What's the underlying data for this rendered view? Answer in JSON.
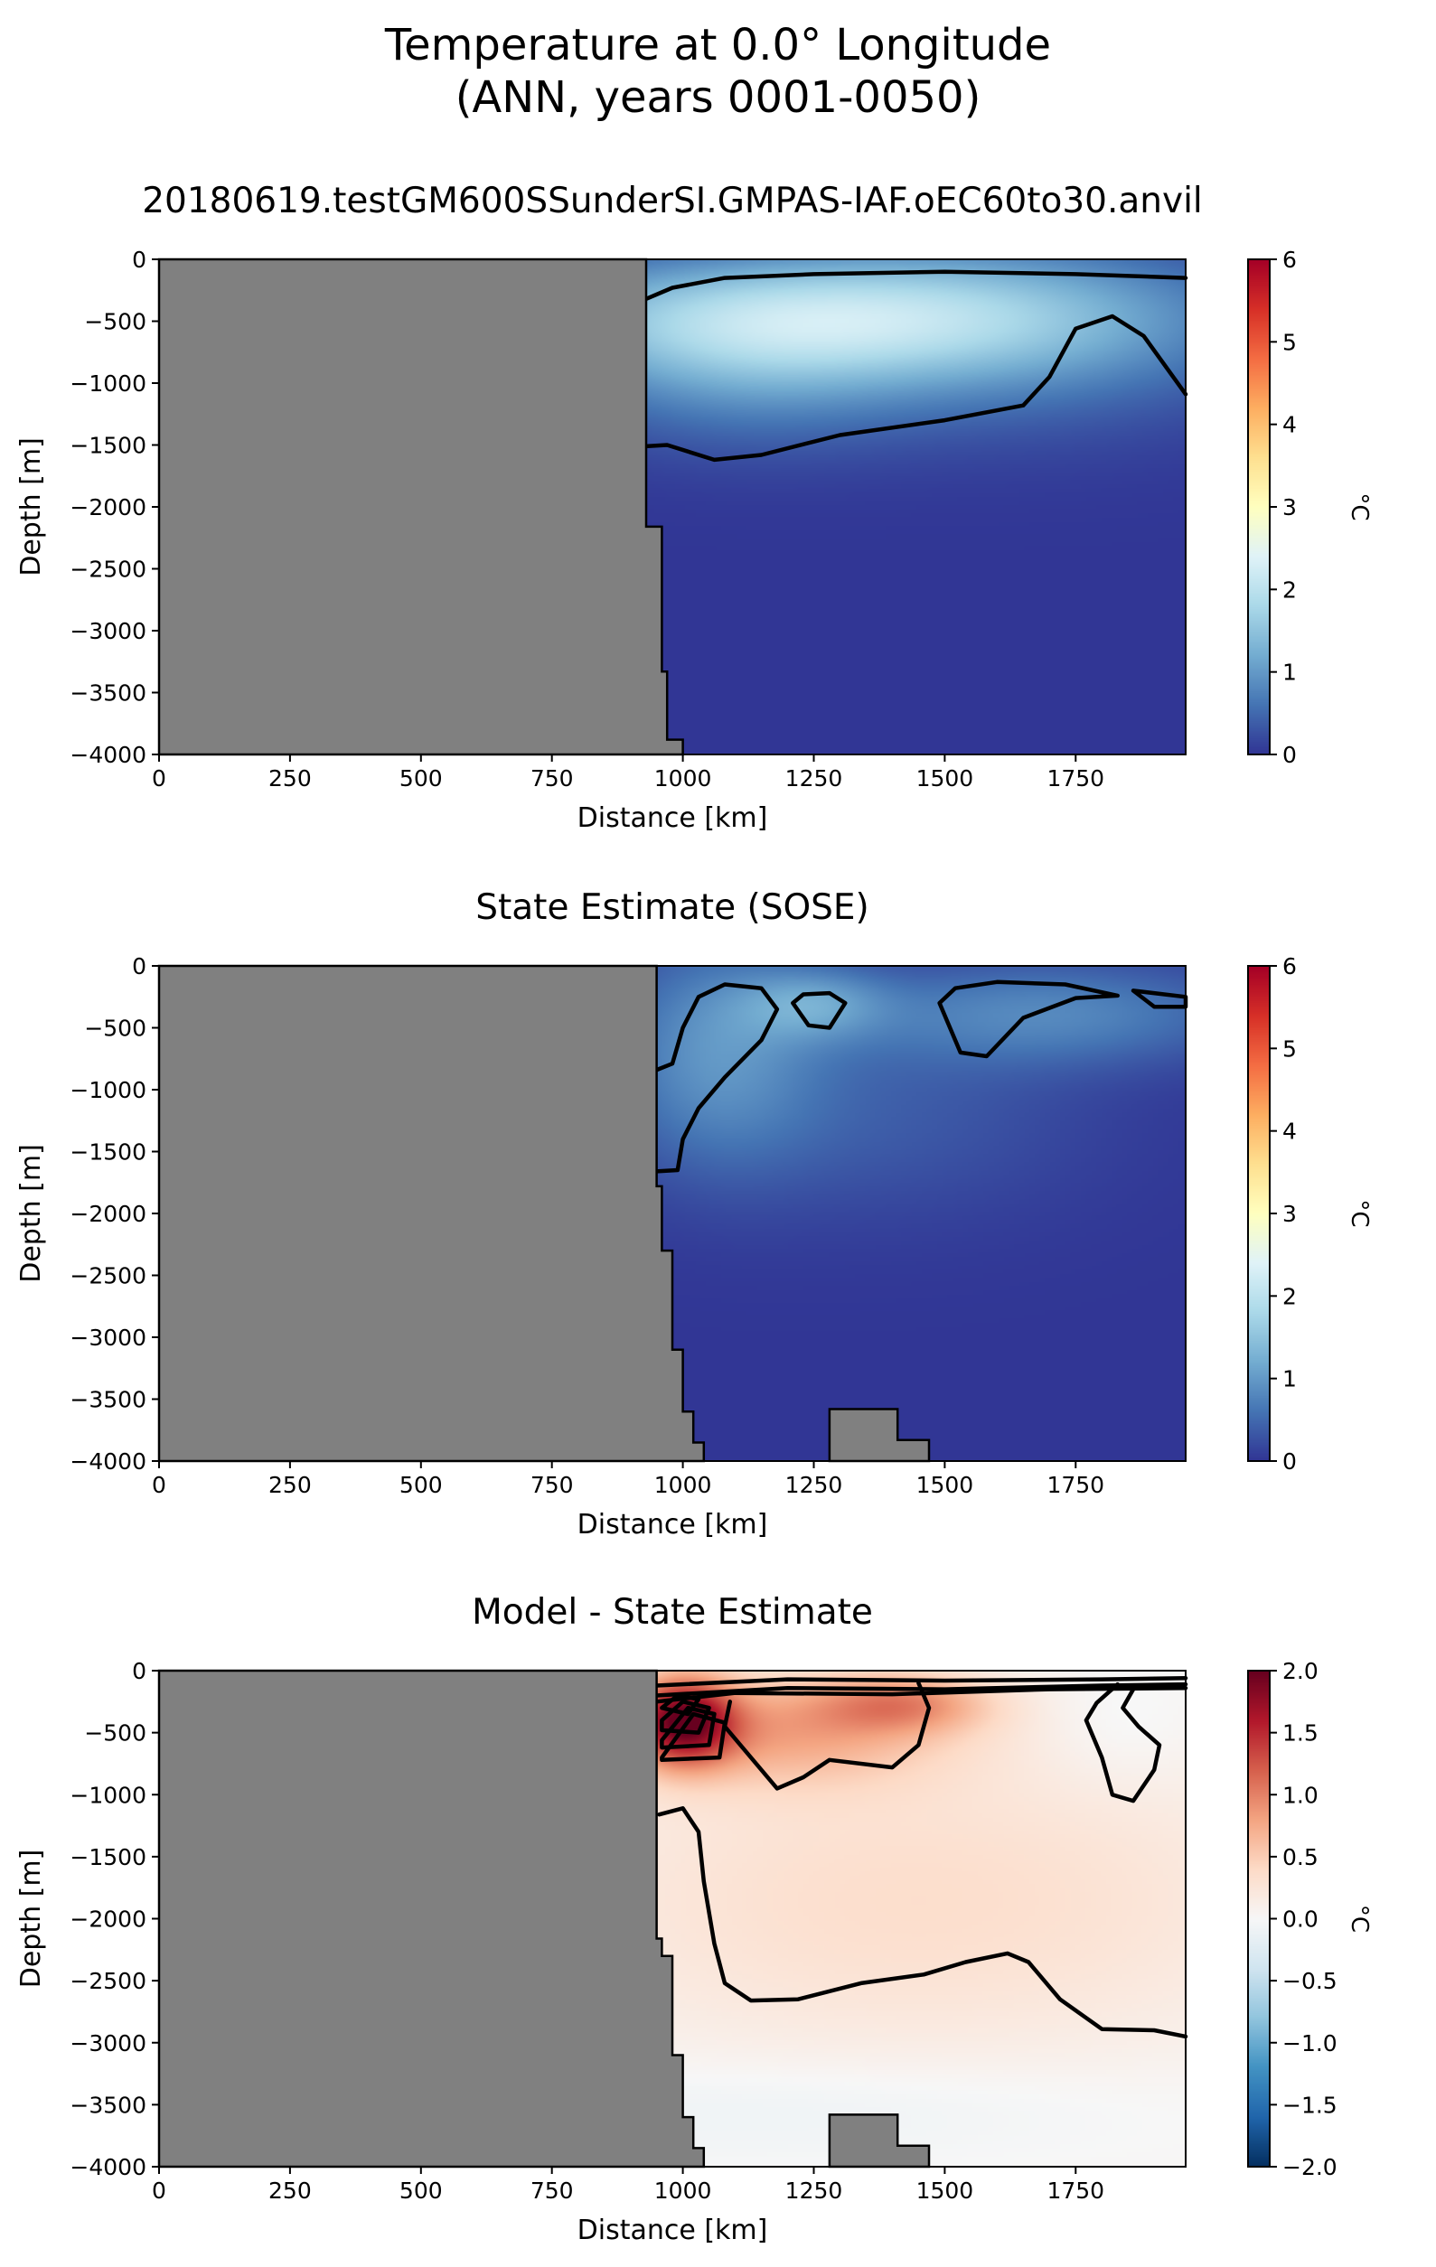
{
  "figure": {
    "title_line1": "Temperature at 0.0° Longitude",
    "title_line2": "(ANN, years 0001-0050)"
  },
  "colors": {
    "land": "#808080",
    "contour": "#000000",
    "rdylbu_r": [
      "#313695",
      "#4575b4",
      "#74add1",
      "#abd9e9",
      "#e0f3f8",
      "#ffffbf",
      "#fee090",
      "#fdae61",
      "#f46d43",
      "#d73027",
      "#a50026"
    ],
    "rdbu_r": [
      "#053061",
      "#2166ac",
      "#4393c3",
      "#92c5de",
      "#d1e5f0",
      "#f7f7f7",
      "#fddbc7",
      "#f4a582",
      "#d6604d",
      "#b2182b",
      "#67001f"
    ]
  },
  "chart_data": [
    {
      "type": "heatmap",
      "title": "20180619.testGM600SSunderSI.GMPAS-IAF.oEC60to30.anvil",
      "xlabel": "Distance [km]",
      "ylabel": "Depth [m]",
      "xlim": [
        0,
        1960
      ],
      "ylim": [
        -4000,
        0
      ],
      "xticks": [
        0,
        250,
        500,
        750,
        1000,
        1250,
        1500,
        1750
      ],
      "yticks": [
        0,
        -500,
        -1000,
        -1500,
        -2000,
        -2500,
        -3000,
        -3500,
        -4000
      ],
      "colorbar": {
        "label": "°C",
        "ticks": [
          0,
          1,
          2,
          3,
          4,
          5,
          6
        ],
        "range": [
          0,
          6
        ],
        "colormap": "RdYlBu_r"
      },
      "land_boundary": [
        [
          930,
          0
        ],
        [
          930,
          -2160
        ],
        [
          960,
          -2160
        ],
        [
          960,
          -3330
        ],
        [
          970,
          -3330
        ],
        [
          970,
          -3880
        ],
        [
          1000,
          -3880
        ],
        [
          1000,
          -4000
        ]
      ],
      "field_features": [
        {
          "x": 1250,
          "y": -450,
          "sx": 420,
          "sy": 350,
          "value": 1.6
        },
        {
          "x": 1650,
          "y": -600,
          "sx": 330,
          "sy": 550,
          "value": 0.7
        },
        {
          "x": 1100,
          "y": -900,
          "sx": 250,
          "sy": 450,
          "value": 0.7
        }
      ],
      "contours": [
        [
          [
            930,
            -320
          ],
          [
            980,
            -230
          ],
          [
            1080,
            -150
          ],
          [
            1250,
            -120
          ],
          [
            1500,
            -100
          ],
          [
            1750,
            -120
          ],
          [
            1960,
            -150
          ]
        ],
        [
          [
            930,
            -1510
          ],
          [
            970,
            -1500
          ],
          [
            1060,
            -1620
          ],
          [
            1150,
            -1580
          ],
          [
            1300,
            -1420
          ],
          [
            1500,
            -1300
          ],
          [
            1650,
            -1180
          ],
          [
            1700,
            -950
          ],
          [
            1750,
            -560
          ],
          [
            1820,
            -460
          ],
          [
            1880,
            -620
          ],
          [
            1960,
            -1090
          ]
        ]
      ]
    },
    {
      "type": "heatmap",
      "title": "State Estimate (SOSE)",
      "xlabel": "Distance [km]",
      "ylabel": "Depth [m]",
      "xlim": [
        0,
        1960
      ],
      "ylim": [
        -4000,
        0
      ],
      "xticks": [
        0,
        250,
        500,
        750,
        1000,
        1250,
        1500,
        1750
      ],
      "yticks": [
        0,
        -500,
        -1000,
        -1500,
        -2000,
        -2500,
        -3000,
        -3500,
        -4000
      ],
      "colorbar": {
        "label": "°C",
        "ticks": [
          0,
          1,
          2,
          3,
          4,
          5,
          6
        ],
        "range": [
          0,
          6
        ],
        "colormap": "RdYlBu_r"
      },
      "land_boundary": [
        [
          950,
          0
        ],
        [
          950,
          -1780
        ],
        [
          960,
          -1780
        ],
        [
          960,
          -2300
        ],
        [
          980,
          -2300
        ],
        [
          980,
          -3100
        ],
        [
          1000,
          -3100
        ],
        [
          1000,
          -3600
        ],
        [
          1020,
          -3600
        ],
        [
          1020,
          -3850
        ],
        [
          1040,
          -3850
        ],
        [
          1040,
          -4000
        ]
      ],
      "seamount": [
        [
          1280,
          -4000
        ],
        [
          1280,
          -3580
        ],
        [
          1410,
          -3580
        ],
        [
          1410,
          -3830
        ],
        [
          1470,
          -3830
        ],
        [
          1470,
          -4000
        ]
      ],
      "field_features": [
        {
          "x": 1060,
          "y": -650,
          "sx": 140,
          "sy": 650,
          "value": 0.8
        },
        {
          "x": 1250,
          "y": -300,
          "sx": 100,
          "sy": 200,
          "value": 0.7
        },
        {
          "x": 1700,
          "y": -380,
          "sx": 280,
          "sy": 300,
          "value": 0.75
        },
        {
          "x": 1350,
          "y": -1200,
          "sx": 300,
          "sy": 600,
          "value": 0.35
        }
      ],
      "contours": [
        [
          [
            950,
            -840
          ],
          [
            980,
            -790
          ],
          [
            1000,
            -500
          ],
          [
            1030,
            -250
          ],
          [
            1080,
            -150
          ],
          [
            1150,
            -180
          ],
          [
            1180,
            -350
          ],
          [
            1150,
            -600
          ],
          [
            1080,
            -900
          ],
          [
            1030,
            -1150
          ],
          [
            1000,
            -1400
          ],
          [
            990,
            -1650
          ],
          [
            950,
            -1660
          ]
        ],
        [
          [
            1210,
            -300
          ],
          [
            1230,
            -230
          ],
          [
            1280,
            -220
          ],
          [
            1310,
            -300
          ],
          [
            1280,
            -500
          ],
          [
            1240,
            -480
          ],
          [
            1210,
            -300
          ]
        ],
        [
          [
            1490,
            -300
          ],
          [
            1520,
            -180
          ],
          [
            1600,
            -130
          ],
          [
            1730,
            -150
          ],
          [
            1830,
            -240
          ],
          [
            1750,
            -260
          ],
          [
            1650,
            -420
          ],
          [
            1580,
            -730
          ],
          [
            1530,
            -700
          ],
          [
            1490,
            -300
          ]
        ],
        [
          [
            1860,
            -200
          ],
          [
            1960,
            -250
          ],
          [
            1960,
            -330
          ],
          [
            1900,
            -330
          ],
          [
            1860,
            -200
          ]
        ]
      ]
    },
    {
      "type": "heatmap",
      "title": "Model - State Estimate",
      "xlabel": "Distance [km]",
      "ylabel": "Depth [m]",
      "xlim": [
        0,
        1960
      ],
      "ylim": [
        -4000,
        0
      ],
      "xticks": [
        0,
        250,
        500,
        750,
        1000,
        1250,
        1500,
        1750
      ],
      "yticks": [
        0,
        -500,
        -1000,
        -1500,
        -2000,
        -2500,
        -3000,
        -3500,
        -4000
      ],
      "colorbar": {
        "label": "°C",
        "ticks": [
          2.0,
          1.5,
          1.0,
          0.5,
          0.0,
          -0.5,
          -1.0,
          -1.5,
          -2.0
        ],
        "range": [
          -2.0,
          2.0
        ],
        "colormap": "RdBu_r"
      },
      "land_boundary": [
        [
          950,
          0
        ],
        [
          950,
          -2160
        ],
        [
          960,
          -2160
        ],
        [
          960,
          -2300
        ],
        [
          980,
          -2300
        ],
        [
          980,
          -3100
        ],
        [
          1000,
          -3100
        ],
        [
          1000,
          -3600
        ],
        [
          1020,
          -3600
        ],
        [
          1020,
          -3850
        ],
        [
          1040,
          -3850
        ],
        [
          1040,
          -4000
        ]
      ],
      "seamount": [
        [
          1280,
          -4000
        ],
        [
          1280,
          -3580
        ],
        [
          1410,
          -3580
        ],
        [
          1410,
          -3830
        ],
        [
          1470,
          -3830
        ],
        [
          1470,
          -4000
        ]
      ],
      "field_features": [
        {
          "x": 1000,
          "y": -400,
          "sx": 70,
          "sy": 250,
          "value": 1.6
        },
        {
          "x": 1190,
          "y": -480,
          "sx": 230,
          "sy": 320,
          "value": 0.7
        },
        {
          "x": 1420,
          "y": -260,
          "sx": 120,
          "sy": 170,
          "value": 0.7
        },
        {
          "x": 1450,
          "y": -1850,
          "sx": 520,
          "sy": 900,
          "value": 0.35
        },
        {
          "x": 1830,
          "y": -450,
          "sx": 110,
          "sy": 350,
          "value": -0.08
        },
        {
          "x": 1200,
          "y": -3550,
          "sx": 520,
          "sy": 300,
          "value": -0.12
        }
      ],
      "contours": [
        [
          [
            950,
            -120
          ],
          [
            1200,
            -70
          ],
          [
            1500,
            -80
          ],
          [
            1800,
            -70
          ],
          [
            1960,
            -60
          ]
        ],
        [
          [
            950,
            -200
          ],
          [
            1200,
            -140
          ],
          [
            1500,
            -150
          ],
          [
            1800,
            -120
          ],
          [
            1960,
            -110
          ]
        ],
        [
          [
            950,
            -250
          ],
          [
            1100,
            -180
          ],
          [
            1400,
            -190
          ],
          [
            1700,
            -150
          ],
          [
            1960,
            -140
          ]
        ],
        [
          [
            960,
            -300
          ],
          [
            990,
            -200
          ],
          [
            1030,
            -230
          ],
          [
            1010,
            -350
          ],
          [
            960,
            -300
          ]
        ],
        [
          [
            960,
            -400
          ],
          [
            1000,
            -250
          ],
          [
            1050,
            -300
          ],
          [
            1030,
            -500
          ],
          [
            960,
            -480
          ],
          [
            960,
            -400
          ]
        ],
        [
          [
            960,
            -560
          ],
          [
            1010,
            -300
          ],
          [
            1060,
            -350
          ],
          [
            1050,
            -600
          ],
          [
            960,
            -620
          ],
          [
            960,
            -560
          ]
        ],
        [
          [
            960,
            -700
          ],
          [
            1020,
            -350
          ],
          [
            1080,
            -420
          ],
          [
            1070,
            -700
          ],
          [
            960,
            -720
          ],
          [
            960,
            -700
          ]
        ],
        [
          [
            1090,
            -250
          ],
          [
            1080,
            -450
          ],
          [
            1130,
            -700
          ],
          [
            1180,
            -950
          ],
          [
            1230,
            -860
          ],
          [
            1280,
            -720
          ],
          [
            1400,
            -780
          ],
          [
            1450,
            -600
          ],
          [
            1470,
            -300
          ],
          [
            1450,
            -100
          ]
        ],
        [
          [
            1830,
            -110
          ],
          [
            1790,
            -260
          ],
          [
            1770,
            -400
          ],
          [
            1800,
            -700
          ],
          [
            1820,
            -1000
          ],
          [
            1860,
            -1050
          ],
          [
            1900,
            -800
          ],
          [
            1910,
            -600
          ],
          [
            1870,
            -450
          ],
          [
            1840,
            -300
          ],
          [
            1860,
            -150
          ]
        ],
        [
          [
            955,
            -1160
          ],
          [
            1000,
            -1110
          ],
          [
            1030,
            -1300
          ],
          [
            1040,
            -1700
          ],
          [
            1060,
            -2200
          ],
          [
            1080,
            -2520
          ],
          [
            1130,
            -2660
          ],
          [
            1220,
            -2650
          ],
          [
            1340,
            -2520
          ],
          [
            1460,
            -2450
          ],
          [
            1540,
            -2350
          ],
          [
            1620,
            -2280
          ],
          [
            1660,
            -2350
          ],
          [
            1720,
            -2650
          ],
          [
            1800,
            -2890
          ],
          [
            1900,
            -2900
          ],
          [
            1960,
            -2950
          ]
        ]
      ]
    }
  ]
}
